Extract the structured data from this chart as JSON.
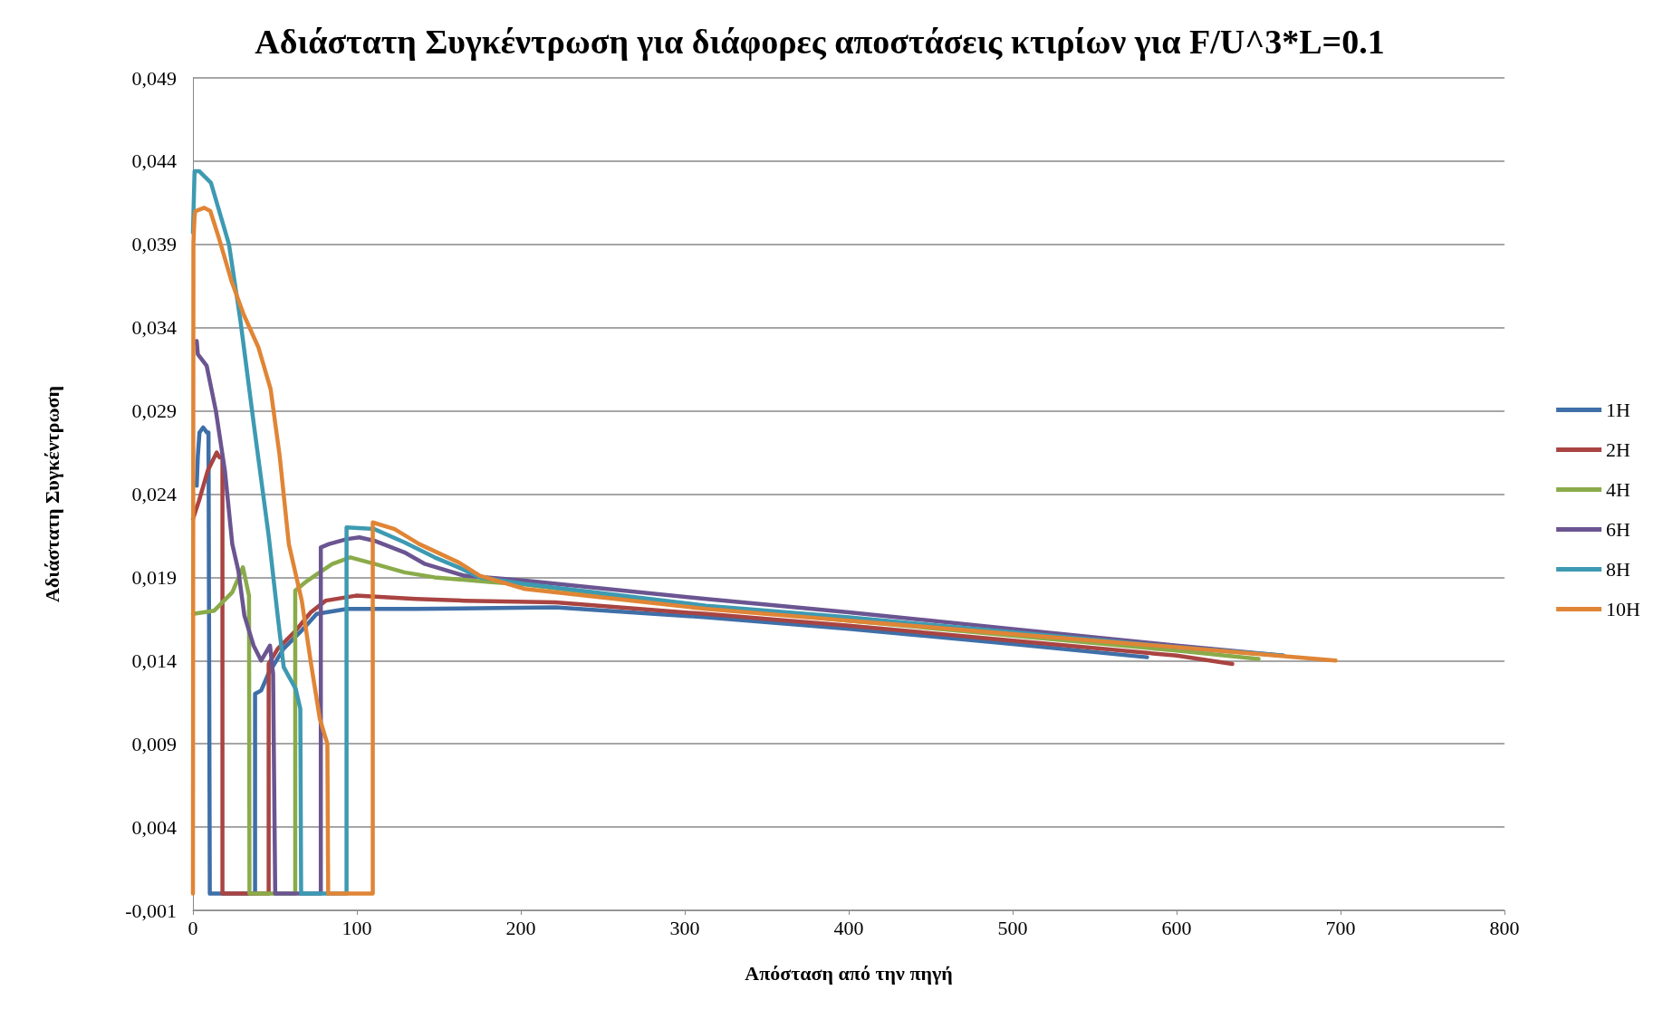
{
  "chart_data": {
    "type": "line",
    "title": "Αδιάστατη Συγκέντρωση για διάφορες αποστάσεις κτιρίων για F/U^3*L=0.1",
    "xlabel": "Απόσταση από την πηγή",
    "ylabel": "Αδιάστατη Συγκέντρωση",
    "xlim": [
      0,
      800
    ],
    "xticks": [
      0,
      100,
      200,
      300,
      400,
      500,
      600,
      700,
      800
    ],
    "ylim": [
      -0.001,
      0.049
    ],
    "yticks": [
      {
        "value": -0.001,
        "label": "-0,001"
      },
      {
        "value": 0.004,
        "label": "0,004"
      },
      {
        "value": 0.009,
        "label": "0,009"
      },
      {
        "value": 0.014,
        "label": "0,014"
      },
      {
        "value": 0.019,
        "label": "0,019"
      },
      {
        "value": 0.024,
        "label": "0,024"
      },
      {
        "value": 0.029,
        "label": "0,029"
      },
      {
        "value": 0.034,
        "label": "0,034"
      },
      {
        "value": 0.039,
        "label": "0,039"
      },
      {
        "value": 0.044,
        "label": "0,044"
      },
      {
        "value": 0.049,
        "label": "0,049"
      }
    ],
    "grid": "y",
    "legend": "right",
    "marker": "none",
    "line_style": "solid",
    "series": [
      {
        "name": "1H",
        "color": "#3f6fa8",
        "x": [
          2.3,
          3,
          4,
          6.2,
          8.6,
          9.5,
          10.3,
          37.9,
          37.9,
          41.6,
          46,
          55.2,
          66.3,
          75.5,
          94,
          136,
          221,
          313,
          400,
          500,
          582
        ],
        "values": [
          0.0245,
          0.0263,
          0.0277,
          0.028,
          0.0277,
          0.0277,
          0,
          0,
          0.012,
          0.0122,
          0.0132,
          0.0147,
          0.0158,
          0.0168,
          0.0171,
          0.0171,
          0.0172,
          0.0166,
          0.0159,
          0.015,
          0.0142
        ]
      },
      {
        "name": "2H",
        "color": "#a94442",
        "x": [
          0,
          3.7,
          9,
          14.5,
          16.3,
          18,
          18,
          46.2,
          46.2,
          51.7,
          62.7,
          71.9,
          81,
          99.5,
          136,
          165.5,
          221,
          313,
          400,
          500,
          600,
          634
        ],
        "values": [
          0.0225,
          0.0236,
          0.0254,
          0.0265,
          0.0262,
          0.0262,
          0,
          0,
          0.0138,
          0.0147,
          0.0158,
          0.0169,
          0.0176,
          0.0179,
          0.0177,
          0.0176,
          0.0175,
          0.0168,
          0.0161,
          0.0152,
          0.0143,
          0.0138
        ]
      },
      {
        "name": "4H",
        "color": "#8aab4a",
        "x": [
          0,
          13,
          24,
          30.5,
          34.2,
          34.5,
          62.4,
          62.4,
          68.5,
          75.9,
          85,
          96,
          111,
          129,
          147.4,
          184,
          200,
          313,
          400,
          500,
          600,
          650
        ],
        "values": [
          0.0168,
          0.017,
          0.0181,
          0.0196,
          0.0179,
          0,
          0,
          0.0182,
          0.0187,
          0.0192,
          0.0198,
          0.0202,
          0.0198,
          0.0193,
          0.019,
          0.0187,
          0.0186,
          0.0172,
          0.0164,
          0.0155,
          0.0146,
          0.0141
        ]
      },
      {
        "name": "6H",
        "color": "#6b5591",
        "x": [
          2.3,
          3,
          8.4,
          14,
          19.5,
          24,
          27.7,
          31.4,
          37,
          41.6,
          47,
          48.9,
          50.2,
          78,
          78,
          83,
          94,
          101.5,
          110.6,
          129,
          141.6,
          165.5,
          202.6,
          313,
          400,
          500,
          600,
          665
        ],
        "values": [
          0.0332,
          0.0324,
          0.0317,
          0.029,
          0.0254,
          0.021,
          0.0194,
          0.0167,
          0.0149,
          0.014,
          0.0149,
          0.0132,
          0,
          0,
          0.0208,
          0.021,
          0.0213,
          0.0214,
          0.0212,
          0.0205,
          0.0198,
          0.0191,
          0.0188,
          0.0177,
          0.0169,
          0.0159,
          0.0149,
          0.0143
        ]
      },
      {
        "name": "8H",
        "color": "#3d9ab2",
        "x": [
          0,
          1,
          3.8,
          11,
          22,
          29,
          37,
          46.2,
          51.7,
          55.4,
          62.7,
          65.5,
          66,
          93.7,
          93.7,
          110.6,
          129,
          147.4,
          162,
          175,
          202.6,
          313,
          400,
          500,
          600,
          665
        ],
        "values": [
          0.0397,
          0.0434,
          0.0434,
          0.0427,
          0.039,
          0.0344,
          0.0283,
          0.0215,
          0.0167,
          0.0136,
          0.0123,
          0.0111,
          0,
          0,
          0.022,
          0.0219,
          0.0211,
          0.0202,
          0.0196,
          0.019,
          0.0186,
          0.0173,
          0.0166,
          0.0157,
          0.0148,
          0.0143
        ]
      },
      {
        "name": "10H",
        "color": "#e08536",
        "x": [
          0,
          0.3,
          1,
          1.5,
          6.9,
          10.6,
          16.1,
          23.5,
          30.9,
          40,
          47.4,
          52.9,
          58.5,
          66.4,
          71.9,
          77.4,
          82,
          82.5,
          109.7,
          109.7,
          123,
          138,
          162,
          175,
          202.6,
          313,
          400,
          500,
          600,
          697
        ],
        "values": [
          0,
          0.0391,
          0.0407,
          0.041,
          0.0412,
          0.041,
          0.0393,
          0.0368,
          0.0348,
          0.0328,
          0.0303,
          0.0263,
          0.021,
          0.0176,
          0.0139,
          0.0105,
          0.009,
          0,
          0,
          0.0223,
          0.0219,
          0.021,
          0.0199,
          0.0191,
          0.0183,
          0.0171,
          0.0164,
          0.0156,
          0.0148,
          0.014
        ]
      }
    ]
  }
}
